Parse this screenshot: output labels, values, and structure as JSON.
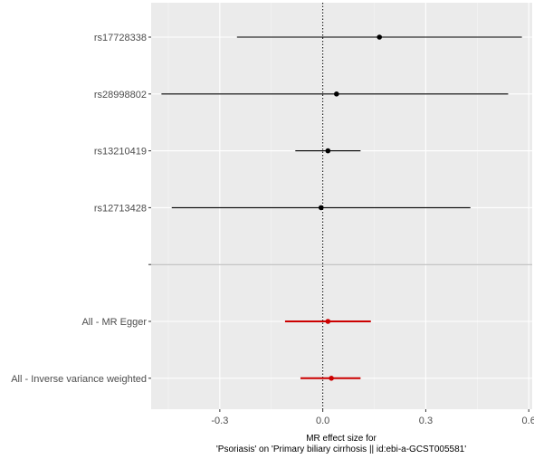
{
  "chart_data": {
    "type": "forest",
    "title": "",
    "xlabel_line1": "MR effect size for",
    "xlabel_line2": "'Psoriasis' on 'Primary biliary cirrhosis || id:ebi-a-GCST005581'",
    "ylabel": "",
    "xlim": [
      -0.5,
      0.61
    ],
    "x_ticks": [
      -0.3,
      0.0,
      0.3,
      0.6
    ],
    "x_tick_labels": [
      "-0.3",
      "0.0",
      "0.3",
      "0.6"
    ],
    "reference_line": 0,
    "grid": true,
    "rows": [
      {
        "label": "rs17728338",
        "estimate": 0.165,
        "lower": -0.25,
        "upper": 0.58,
        "group": "snp"
      },
      {
        "label": "rs28998802",
        "estimate": 0.04,
        "lower": -0.47,
        "upper": 0.54,
        "group": "snp"
      },
      {
        "label": "rs13210419",
        "estimate": 0.015,
        "lower": -0.08,
        "upper": 0.11,
        "group": "snp"
      },
      {
        "label": "rs12713428",
        "estimate": -0.005,
        "lower": -0.44,
        "upper": 0.43,
        "group": "snp"
      },
      {
        "label": "",
        "separator": true
      },
      {
        "label": "All - MR Egger",
        "estimate": 0.015,
        "lower": -0.11,
        "upper": 0.14,
        "group": "summary"
      },
      {
        "label": "All - Inverse variance weighted",
        "estimate": 0.025,
        "lower": -0.065,
        "upper": 0.11,
        "group": "summary"
      }
    ]
  },
  "colors": {
    "panel_bg": "#ebebeb",
    "grid_major": "#ffffff",
    "snp": "#000000",
    "summary": "#cc0000",
    "separator": "#b3b3b3",
    "tick_text": "#4d4d4d"
  }
}
